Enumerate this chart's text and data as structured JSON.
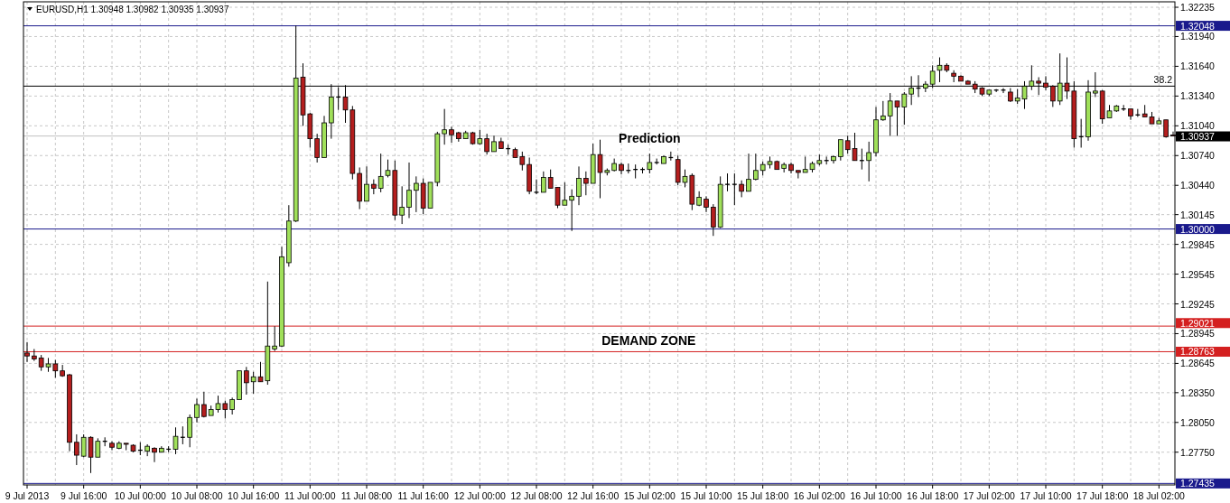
{
  "chart_data": {
    "type": "candlestick",
    "title": "EURUSD,H1 1.30948 1.30982 1.30935 1.30937",
    "categories": [
      "9 Jul 2013",
      null,
      null,
      null,
      null,
      null,
      null,
      null,
      "9 Jul 16:00",
      null,
      null,
      null,
      null,
      null,
      null,
      null,
      "10 Jul 00:00",
      null,
      null,
      null,
      null,
      null,
      null,
      null,
      "10 Jul 08:00",
      null,
      null,
      null,
      null,
      null,
      null,
      null,
      "10 Jul 16:00",
      null,
      null,
      null,
      null,
      null,
      null,
      null,
      "11 Jul 00:00",
      null,
      null,
      null,
      null,
      null,
      null,
      null,
      "11 Jul 08:00",
      null,
      null,
      null,
      null,
      null,
      null,
      null,
      "11 Jul 16:00",
      null,
      null,
      null,
      null,
      null,
      null,
      null,
      "12 Jul 00:00",
      null,
      null,
      null,
      null,
      null,
      null,
      null,
      "12 Jul 08:00",
      null,
      null,
      null,
      null,
      null,
      null,
      null,
      "12 Jul 16:00",
      null,
      null,
      null,
      null,
      null,
      null,
      null,
      "15 Jul 02:00",
      null,
      null,
      null,
      null,
      null,
      null,
      null,
      "15 Jul 10:00",
      null,
      null,
      null,
      null,
      null,
      null,
      null,
      "15 Jul 18:00",
      null,
      null,
      null,
      null,
      null,
      null,
      null,
      "16 Jul 02:00",
      null,
      null,
      null,
      null,
      null,
      null,
      null,
      "16 Jul 10:00",
      null,
      null,
      null,
      null,
      null,
      null,
      null,
      "16 Jul 18:00",
      null,
      null,
      null,
      null,
      null,
      null,
      null,
      "17 Jul 02:00",
      null,
      null,
      null,
      null,
      null,
      null,
      null,
      "17 Jul 10:00",
      null,
      null,
      null,
      null,
      null,
      null,
      null,
      "17 Jul 18:00",
      null,
      null,
      null,
      null,
      null,
      null,
      null,
      "18 Jul 02:00",
      null,
      null
    ],
    "ohlc": [
      [
        1.2875,
        1.2886,
        1.2866,
        1.2872
      ],
      [
        1.2872,
        1.2879,
        1.2867,
        1.2869
      ],
      [
        1.287,
        1.2873,
        1.2857,
        1.2861
      ],
      [
        1.2861,
        1.287,
        1.2856,
        1.2864
      ],
      [
        1.2864,
        1.2868,
        1.285,
        1.2857
      ],
      [
        1.2857,
        1.2863,
        1.2851,
        1.2852
      ],
      [
        1.2853,
        1.2854,
        1.2776,
        1.2785
      ],
      [
        1.2785,
        1.2793,
        1.2762,
        1.2772
      ],
      [
        1.2771,
        1.2793,
        1.277,
        1.279
      ],
      [
        1.279,
        1.2791,
        1.2754,
        1.277
      ],
      [
        1.277,
        1.2789,
        1.277,
        1.2786
      ],
      [
        1.2786,
        1.279,
        1.2781,
        1.2786
      ],
      [
        1.2784,
        1.2786,
        1.2777,
        1.278
      ],
      [
        1.2779,
        1.2786,
        1.2778,
        1.2784
      ],
      [
        1.2784,
        1.2784,
        1.2777,
        1.2783
      ],
      [
        1.2782,
        1.2783,
        1.2775,
        1.2776
      ],
      [
        1.2777,
        1.2785,
        1.2772,
        1.2777
      ],
      [
        1.2776,
        1.2783,
        1.2771,
        1.2781
      ],
      [
        1.2779,
        1.278,
        1.2765,
        1.2775
      ],
      [
        1.2775,
        1.2781,
        1.2775,
        1.2779
      ],
      [
        1.2778,
        1.2781,
        1.2775,
        1.2778
      ],
      [
        1.2778,
        1.28,
        1.2773,
        1.2791
      ],
      [
        1.279,
        1.2801,
        1.2783,
        1.279
      ],
      [
        1.279,
        1.2813,
        1.278,
        1.281
      ],
      [
        1.281,
        1.2829,
        1.2805,
        1.2823
      ],
      [
        1.2823,
        1.2836,
        1.281,
        1.2811
      ],
      [
        1.2812,
        1.2822,
        1.2812,
        1.2818
      ],
      [
        1.2818,
        1.2832,
        1.2815,
        1.2824
      ],
      [
        1.2824,
        1.2827,
        1.2809,
        1.2818
      ],
      [
        1.2818,
        1.283,
        1.2813,
        1.2828
      ],
      [
        1.2828,
        1.2857,
        1.2828,
        1.2857
      ],
      [
        1.2857,
        1.2861,
        1.2833,
        1.2845
      ],
      [
        1.2846,
        1.2856,
        1.2834,
        1.2851
      ],
      [
        1.2851,
        1.2866,
        1.2846,
        1.2846
      ],
      [
        1.2847,
        1.2947,
        1.2843,
        1.2882
      ],
      [
        1.2879,
        1.2902,
        1.2877,
        1.2882
      ],
      [
        1.2882,
        1.2982,
        1.2881,
        1.2972
      ],
      [
        1.2966,
        1.3024,
        1.2962,
        1.3008
      ],
      [
        1.3008,
        1.3205,
        1.3007,
        1.3152
      ],
      [
        1.3153,
        1.3167,
        1.3104,
        1.3115
      ],
      [
        1.3116,
        1.3117,
        1.3082,
        1.3091
      ],
      [
        1.3091,
        1.3096,
        1.3067,
        1.3072
      ],
      [
        1.3072,
        1.3114,
        1.3072,
        1.3107
      ],
      [
        1.3107,
        1.3146,
        1.3091,
        1.3133
      ],
      [
        1.3133,
        1.3143,
        1.312,
        1.3133
      ],
      [
        1.3133,
        1.3145,
        1.3107,
        1.312
      ],
      [
        1.312,
        1.3124,
        1.305,
        1.3056
      ],
      [
        1.3056,
        1.3062,
        1.302,
        1.3028
      ],
      [
        1.3028,
        1.3063,
        1.3028,
        1.3045
      ],
      [
        1.3045,
        1.305,
        1.3035,
        1.3041
      ],
      [
        1.3041,
        1.3076,
        1.3037,
        1.3053
      ],
      [
        1.3054,
        1.307,
        1.3052,
        1.3059
      ],
      [
        1.3059,
        1.3069,
        1.3009,
        1.3014
      ],
      [
        1.3014,
        1.3043,
        1.3005,
        1.3022
      ],
      [
        1.3022,
        1.3067,
        1.3011,
        1.3039
      ],
      [
        1.3039,
        1.3053,
        1.3017,
        1.3046
      ],
      [
        1.3046,
        1.3051,
        1.3015,
        1.3021
      ],
      [
        1.3021,
        1.3047,
        1.3021,
        1.3047
      ],
      [
        1.3047,
        1.3098,
        1.3043,
        1.3096
      ],
      [
        1.3096,
        1.3121,
        1.3085,
        1.31
      ],
      [
        1.31,
        1.3103,
        1.3087,
        1.3095
      ],
      [
        1.3097,
        1.3098,
        1.3088,
        1.3091
      ],
      [
        1.3091,
        1.3099,
        1.3091,
        1.3097
      ],
      [
        1.3097,
        1.3098,
        1.3085,
        1.3086
      ],
      [
        1.3086,
        1.31,
        1.3085,
        1.3091
      ],
      [
        1.3091,
        1.3096,
        1.3075,
        1.3078
      ],
      [
        1.3078,
        1.3094,
        1.3078,
        1.3088
      ],
      [
        1.3088,
        1.3092,
        1.3081,
        1.3081
      ],
      [
        1.3081,
        1.3085,
        1.3075,
        1.3081
      ],
      [
        1.308,
        1.3082,
        1.3072,
        1.3072
      ],
      [
        1.3073,
        1.3078,
        1.3059,
        1.3065
      ],
      [
        1.3065,
        1.3072,
        1.3035,
        1.3038
      ],
      [
        1.3037,
        1.305,
        1.3035,
        1.3037
      ],
      [
        1.3037,
        1.3058,
        1.3037,
        1.3052
      ],
      [
        1.3052,
        1.306,
        1.3041,
        1.3041
      ],
      [
        1.3042,
        1.3042,
        1.3021,
        1.3024
      ],
      [
        1.3024,
        1.3047,
        1.3024,
        1.3029
      ],
      [
        1.3029,
        1.304,
        1.2998,
        1.3033
      ],
      [
        1.3033,
        1.3063,
        1.3024,
        1.3051
      ],
      [
        1.3051,
        1.3058,
        1.3034,
        1.3046
      ],
      [
        1.3046,
        1.3086,
        1.3046,
        1.3075
      ],
      [
        1.3075,
        1.309,
        1.3031,
        1.3057
      ],
      [
        1.3057,
        1.3061,
        1.3054,
        1.3059
      ],
      [
        1.3059,
        1.3071,
        1.3058,
        1.3066
      ],
      [
        1.3065,
        1.3067,
        1.3055,
        1.3059
      ],
      [
        1.3059,
        1.3066,
        1.3056,
        1.3059
      ],
      [
        1.306,
        1.3065,
        1.3051,
        1.306
      ],
      [
        1.306,
        1.3062,
        1.3056,
        1.306
      ],
      [
        1.306,
        1.3076,
        1.3056,
        1.3067
      ],
      [
        1.3067,
        1.3071,
        1.3065,
        1.3067
      ],
      [
        1.3066,
        1.3074,
        1.3066,
        1.3073
      ],
      [
        1.3072,
        1.3078,
        1.3069,
        1.3072
      ],
      [
        1.307,
        1.3074,
        1.3044,
        1.3047
      ],
      [
        1.3047,
        1.306,
        1.3042,
        1.3053
      ],
      [
        1.3054,
        1.3056,
        1.3019,
        1.3025
      ],
      [
        1.3024,
        1.3038,
        1.3023,
        1.3032
      ],
      [
        1.303,
        1.3033,
        1.3017,
        1.3022
      ],
      [
        1.3022,
        1.3025,
        1.2993,
        1.3002
      ],
      [
        1.3002,
        1.3053,
        1.3001,
        1.3045
      ],
      [
        1.3045,
        1.3056,
        1.3038,
        1.3045
      ],
      [
        1.3045,
        1.3056,
        1.3024,
        1.3045
      ],
      [
        1.3045,
        1.3049,
        1.3032,
        1.3038
      ],
      [
        1.3038,
        1.3076,
        1.3038,
        1.305
      ],
      [
        1.305,
        1.3076,
        1.3049,
        1.3059
      ],
      [
        1.3059,
        1.3068,
        1.3054,
        1.3065
      ],
      [
        1.3065,
        1.3073,
        1.3061,
        1.3068
      ],
      [
        1.3068,
        1.3069,
        1.306,
        1.306
      ],
      [
        1.3061,
        1.3067,
        1.3057,
        1.3065
      ],
      [
        1.3065,
        1.3067,
        1.3056,
        1.3059
      ],
      [
        1.3059,
        1.3059,
        1.3051,
        1.3057
      ],
      [
        1.3057,
        1.3073,
        1.3057,
        1.306
      ],
      [
        1.306,
        1.3068,
        1.3057,
        1.3066
      ],
      [
        1.3066,
        1.3075,
        1.3064,
        1.3069
      ],
      [
        1.3069,
        1.3073,
        1.3065,
        1.3069
      ],
      [
        1.3069,
        1.3074,
        1.3066,
        1.3073
      ],
      [
        1.3073,
        1.309,
        1.3069,
        1.309
      ],
      [
        1.3089,
        1.3094,
        1.3076,
        1.308
      ],
      [
        1.3081,
        1.3097,
        1.3069,
        1.3069
      ],
      [
        1.3069,
        1.3081,
        1.306,
        1.3069
      ],
      [
        1.3069,
        1.3088,
        1.3048,
        1.3077
      ],
      [
        1.3077,
        1.3123,
        1.3073,
        1.311
      ],
      [
        1.311,
        1.3129,
        1.3109,
        1.3114
      ],
      [
        1.3114,
        1.3137,
        1.3094,
        1.3129
      ],
      [
        1.3129,
        1.3129,
        1.3094,
        1.3123
      ],
      [
        1.3123,
        1.3138,
        1.3105,
        1.3136
      ],
      [
        1.3136,
        1.3154,
        1.3125,
        1.3142
      ],
      [
        1.3142,
        1.3155,
        1.3133,
        1.3142
      ],
      [
        1.3142,
        1.3149,
        1.3138,
        1.3146
      ],
      [
        1.3146,
        1.3165,
        1.3142,
        1.3159
      ],
      [
        1.316,
        1.3173,
        1.3148,
        1.3165
      ],
      [
        1.3165,
        1.3167,
        1.3158,
        1.316
      ],
      [
        1.3157,
        1.316,
        1.3148,
        1.3154
      ],
      [
        1.3154,
        1.3155,
        1.3149,
        1.3149
      ],
      [
        1.3149,
        1.315,
        1.3146,
        1.3146
      ],
      [
        1.3146,
        1.3149,
        1.3137,
        1.3141
      ],
      [
        1.3142,
        1.3143,
        1.3134,
        1.3136
      ],
      [
        1.3136,
        1.314,
        1.3134,
        1.314
      ],
      [
        1.314,
        1.3141,
        1.3138,
        1.314
      ],
      [
        1.314,
        1.3142,
        1.3137,
        1.314
      ],
      [
        1.3138,
        1.3142,
        1.3128,
        1.3129
      ],
      [
        1.3129,
        1.3141,
        1.3126,
        1.3132
      ],
      [
        1.3131,
        1.3149,
        1.3121,
        1.3144
      ],
      [
        1.3144,
        1.3165,
        1.314,
        1.3149
      ],
      [
        1.3149,
        1.3153,
        1.3135,
        1.3147
      ],
      [
        1.3147,
        1.3154,
        1.314,
        1.3143
      ],
      [
        1.3144,
        1.3145,
        1.3123,
        1.3129
      ],
      [
        1.3129,
        1.3177,
        1.3125,
        1.3147
      ],
      [
        1.3147,
        1.3173,
        1.3131,
        1.3139
      ],
      [
        1.3139,
        1.3149,
        1.3082,
        1.3091
      ],
      [
        1.3093,
        1.3111,
        1.3082,
        1.3093
      ],
      [
        1.3093,
        1.315,
        1.3089,
        1.3138
      ],
      [
        1.3137,
        1.3158,
        1.3133,
        1.3139
      ],
      [
        1.3139,
        1.314,
        1.3106,
        1.3111
      ],
      [
        1.3112,
        1.3125,
        1.3112,
        1.3119
      ],
      [
        1.3119,
        1.3125,
        1.3118,
        1.3124
      ],
      [
        1.3121,
        1.3125,
        1.3119,
        1.3121
      ],
      [
        1.3121,
        1.3121,
        1.311,
        1.3114
      ],
      [
        1.3115,
        1.3121,
        1.3113,
        1.3115
      ],
      [
        1.3116,
        1.3125,
        1.3113,
        1.3113
      ],
      [
        1.3113,
        1.3118,
        1.3106,
        1.3106
      ],
      [
        1.3106,
        1.3112,
        1.3106,
        1.3109
      ],
      [
        1.311,
        1.311,
        1.3092,
        1.3093
      ],
      [
        1.30948,
        1.30982,
        1.30935,
        1.30937
      ]
    ],
    "colors": [
      "#b41e1e",
      "#b41e1e",
      "#b41e1e",
      "#a0e05a",
      "#b41e1e",
      "#b41e1e",
      "#b41e1e",
      "#b41e1e",
      "#a0e05a",
      "#b41e1e",
      "#a0e05a",
      "#000000",
      "#b41e1e",
      "#a0e05a",
      "#b41e1e",
      "#b41e1e",
      "#000000",
      "#a0e05a",
      "#b41e1e",
      "#a0e05a",
      "#000000",
      "#a0e05a",
      "#000000",
      "#a0e05a",
      "#a0e05a",
      "#b41e1e",
      "#a0e05a",
      "#a0e05a",
      "#b41e1e",
      "#a0e05a",
      "#a0e05a",
      "#b41e1e",
      "#a0e05a",
      "#b41e1e",
      "#a0e05a",
      "#a0e05a",
      "#a0e05a",
      "#a0e05a",
      "#a0e05a",
      "#b41e1e",
      "#b41e1e",
      "#b41e1e",
      "#a0e05a",
      "#a0e05a",
      "#000000",
      "#b41e1e",
      "#b41e1e",
      "#b41e1e",
      "#a0e05a",
      "#b41e1e",
      "#a0e05a",
      "#a0e05a",
      "#b41e1e",
      "#a0e05a",
      "#a0e05a",
      "#a0e05a",
      "#b41e1e",
      "#a0e05a",
      "#a0e05a",
      "#a0e05a",
      "#b41e1e",
      "#b41e1e",
      "#a0e05a",
      "#b41e1e",
      "#a0e05a",
      "#b41e1e",
      "#a0e05a",
      "#b41e1e",
      "#000000",
      "#b41e1e",
      "#b41e1e",
      "#b41e1e",
      "#000000",
      "#a0e05a",
      "#b41e1e",
      "#b41e1e",
      "#a0e05a",
      "#a0e05a",
      "#a0e05a",
      "#b41e1e",
      "#a0e05a",
      "#b41e1e",
      "#a0e05a",
      "#a0e05a",
      "#b41e1e",
      "#000000",
      "#000000",
      "#000000",
      "#a0e05a",
      "#000000",
      "#a0e05a",
      "#000000",
      "#b41e1e",
      "#a0e05a",
      "#b41e1e",
      "#a0e05a",
      "#b41e1e",
      "#b41e1e",
      "#a0e05a",
      "#000000",
      "#000000",
      "#b41e1e",
      "#a0e05a",
      "#a0e05a",
      "#a0e05a",
      "#a0e05a",
      "#b41e1e",
      "#a0e05a",
      "#b41e1e",
      "#b41e1e",
      "#a0e05a",
      "#a0e05a",
      "#a0e05a",
      "#000000",
      "#a0e05a",
      "#a0e05a",
      "#b41e1e",
      "#b41e1e",
      "#000000",
      "#a0e05a",
      "#a0e05a",
      "#a0e05a",
      "#a0e05a",
      "#b41e1e",
      "#a0e05a",
      "#a0e05a",
      "#000000",
      "#a0e05a",
      "#a0e05a",
      "#a0e05a",
      "#b41e1e",
      "#b41e1e",
      "#b41e1e",
      "#b41e1e",
      "#b41e1e",
      "#b41e1e",
      "#a0e05a",
      "#000000",
      "#000000",
      "#b41e1e",
      "#a0e05a",
      "#a0e05a",
      "#a0e05a",
      "#b41e1e",
      "#b41e1e",
      "#b41e1e",
      "#a0e05a",
      "#b41e1e",
      "#b41e1e",
      "#000000",
      "#a0e05a",
      "#a0e05a",
      "#b41e1e",
      "#a0e05a",
      "#a0e05a",
      "#000000",
      "#b41e1e",
      "#000000",
      "#b41e1e",
      "#b41e1e",
      "#a0e05a",
      "#b41e1e",
      "#b41e1e"
    ],
    "ylim": [
      1.2742,
      1.3229
    ],
    "yticks": [
      1.32235,
      {
        "value": 1.3194,
        "label": "1.31940"
      },
      {
        "value": 1.3164,
        "label": "1.31640"
      },
      {
        "value": 1.3134,
        "label": "1.31340"
      },
      {
        "value": 1.3104,
        "label": "1.31040"
      },
      {
        "value": 1.3074,
        "label": "1.30740"
      },
      {
        "value": 1.3044,
        "label": "1.30440"
      },
      1.30145,
      1.29845,
      1.29545,
      1.29245,
      1.28945,
      1.28645,
      {
        "value": 1.2835,
        "label": "1.28350"
      },
      {
        "value": 1.2805,
        "label": "1.28050"
      },
      {
        "value": 1.2775,
        "label": "1.27750"
      }
    ],
    "grid": true,
    "ref_lines": [
      {
        "axis": "y",
        "value": 1.32048,
        "label": "1.32048",
        "color": "#1a1a8c"
      },
      {
        "axis": "y",
        "value": 1.3144,
        "color": "#000000"
      },
      {
        "axis": "y",
        "value": 1.30937,
        "label": "1.30937",
        "color": "#c0c0c0"
      },
      {
        "axis": "y",
        "value": 1.3,
        "label": "1.30000",
        "color": "#1a1a8c"
      },
      {
        "axis": "y",
        "value": 1.29021,
        "label": "1.29021",
        "color": "#d42020"
      },
      {
        "axis": "y",
        "value": 1.28763,
        "label": "1.28763",
        "color": "#d42020"
      },
      {
        "axis": "y",
        "value": 1.27435,
        "label": "1.27435",
        "color": "#1a1a8c"
      }
    ],
    "annotations": [
      {
        "text": "Prediction",
        "x": "15 Jul 02:00",
        "y": 1.3092
      },
      "DEMAND ZONE",
      {
        "text": "38.2",
        "y": 1.3144
      }
    ]
  }
}
